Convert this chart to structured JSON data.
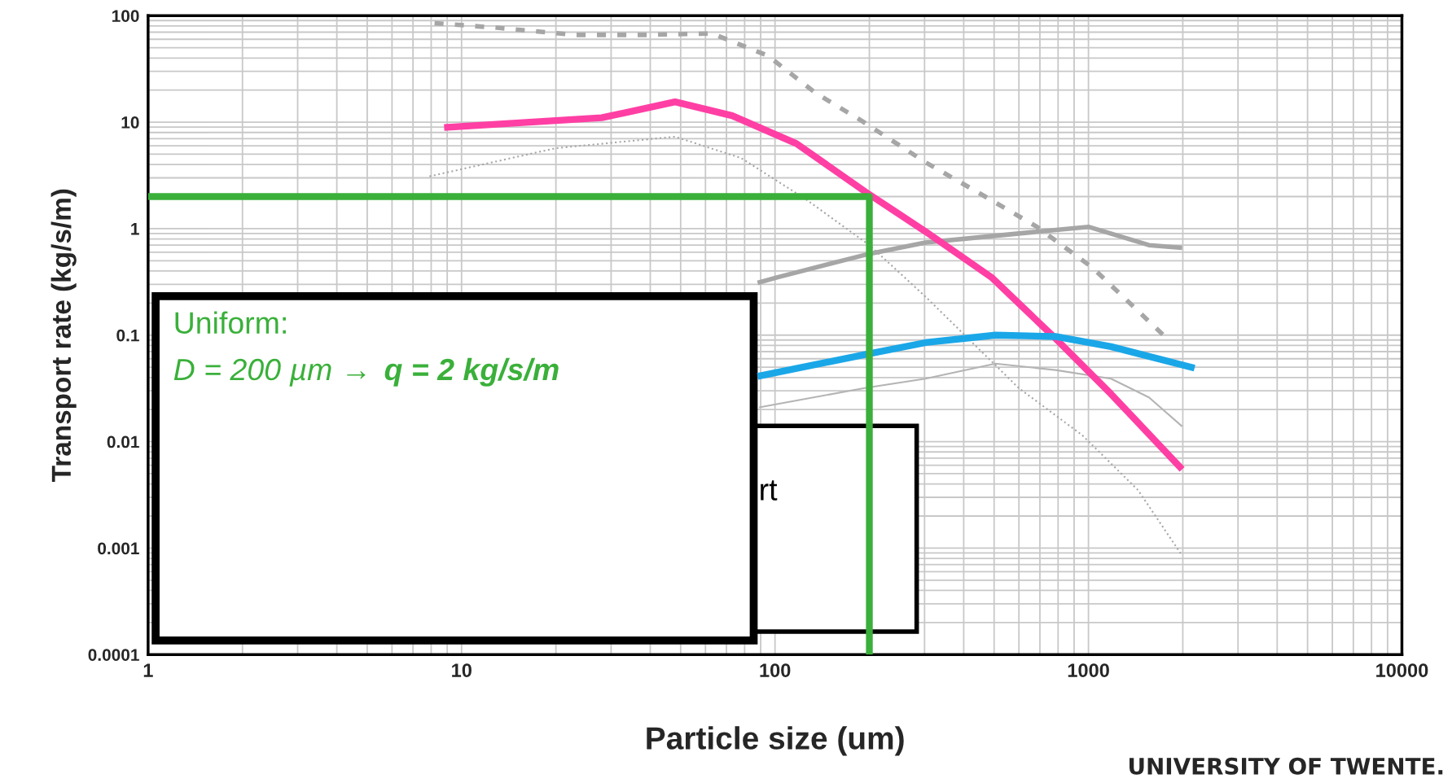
{
  "chart_data": {
    "type": "line",
    "xlabel": "Particle size (um)",
    "ylabel": "Transport rate (kg/s/m)",
    "log": "xy",
    "grid": true,
    "legend": false,
    "xlim": [
      1,
      10000
    ],
    "xticks": [
      1,
      10,
      100,
      1000,
      10000
    ],
    "ylim": [
      0.0001,
      100
    ],
    "yticks": [
      0.0001,
      0.001,
      0.01,
      0.1,
      1,
      10,
      100
    ],
    "series": [
      {
        "color": "#a6a6a6",
        "line_style": "dashed",
        "x": [
          8.2,
          13,
          23,
          39,
          63,
          95,
          134,
          188,
          302,
          455,
          685,
          1030,
          1780
        ],
        "values": [
          85,
          77,
          66,
          66,
          68,
          42,
          19,
          10.4,
          4.2,
          2.1,
          1.04,
          0.43,
          0.093
        ]
      },
      {
        "color": "#a6a6a6",
        "line_style": "dotted",
        "x": [
          7.9,
          20,
          48,
          78,
          125,
          200,
          302,
          598,
          955,
          1440,
          1990
        ],
        "values": [
          3.1,
          5.7,
          7.3,
          4.6,
          1.9,
          0.7,
          0.23,
          0.032,
          0.0115,
          0.0035,
          0.00085
        ]
      },
      {
        "color": "#a6a6a6",
        "line_style": "solid",
        "x": [
          88,
          102,
          195,
          302,
          490,
          1000,
          1560,
          1990
        ],
        "values": [
          0.31,
          0.35,
          0.57,
          0.74,
          0.85,
          1.04,
          0.7,
          0.66
        ]
      },
      {
        "color": "#b4b4b4",
        "line_style": "solid",
        "x": [
          89,
          195,
          302,
          505,
          785,
          1180,
          1560,
          1990
        ],
        "values": [
          0.021,
          0.032,
          0.039,
          0.054,
          0.047,
          0.039,
          0.026,
          0.0139
        ]
      },
      {
        "color": "#ff3fa4",
        "line_style": "solid",
        "x": [
          8.8,
          28,
          48,
          73,
          117,
          195,
          302,
          490,
          785,
          1180,
          1990
        ],
        "values": [
          8.9,
          11,
          15.5,
          11.5,
          6.3,
          2.2,
          0.94,
          0.35,
          0.093,
          0.028,
          0.0055
        ]
      },
      {
        "color": "#1aa7e8",
        "line_style": "solid",
        "x": [
          88,
          195,
          302,
          505,
          785,
          1180,
          2180
        ],
        "values": [
          0.041,
          0.066,
          0.085,
          0.1,
          0.097,
          0.078,
          0.049
        ]
      },
      {
        "color": "#3ab03a",
        "line_style": "solid",
        "x": [
          1,
          200,
          200
        ],
        "values": [
          2,
          2,
          0.0001
        ]
      }
    ],
    "annotations": [
      "Uniform:",
      "D = 200 µm →",
      "q = 2 kg/s/m",
      "rt",
      "UNIVERSITY OF TWENTE."
    ]
  }
}
